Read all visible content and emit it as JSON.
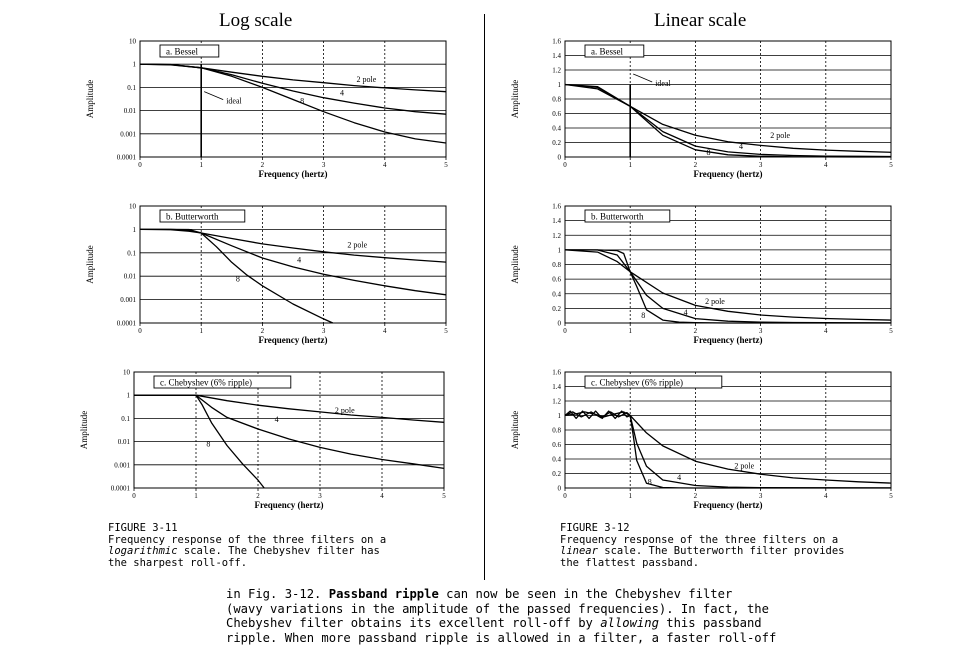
{
  "titles": {
    "left": "Log scale",
    "right": "Linear scale"
  },
  "chart_data": [
    {
      "id": "fig11a",
      "type": "line",
      "scale": "log",
      "title": "a. Bessel",
      "xlabel": "Frequency (hertz)",
      "ylabel": "Amplitude",
      "xlim": [
        0,
        5
      ],
      "ylim": [
        0.0001,
        10
      ],
      "xticks": [
        "0",
        "1",
        "2",
        "3",
        "4",
        "5"
      ],
      "yticks": [
        {
          "v": 10,
          "t": "10"
        },
        {
          "v": 1,
          "t": "1"
        },
        {
          "v": 0.1,
          "t": "0.1"
        },
        {
          "v": 0.01,
          "t": "0.01"
        },
        {
          "v": 0.001,
          "t": "0.001"
        },
        {
          "v": 0.0001,
          "t": "0.0001"
        }
      ],
      "grid": true,
      "ideal": {
        "x": 1,
        "label": "ideal"
      },
      "series": [
        {
          "name": "2 pole",
          "x": [
            0,
            0.5,
            1,
            1.5,
            2,
            2.5,
            3,
            3.5,
            4,
            4.5,
            5
          ],
          "y": [
            1,
            0.94,
            0.7,
            0.45,
            0.3,
            0.21,
            0.16,
            0.12,
            0.095,
            0.078,
            0.065
          ]
        },
        {
          "name": "4",
          "x": [
            0,
            0.5,
            1,
            1.5,
            2,
            2.5,
            3,
            3.5,
            4,
            4.5,
            5
          ],
          "y": [
            1,
            0.96,
            0.7,
            0.35,
            0.15,
            0.07,
            0.036,
            0.021,
            0.013,
            0.009,
            0.007
          ]
        },
        {
          "name": "8",
          "x": [
            0,
            0.5,
            1,
            1.5,
            2,
            2.5,
            3,
            3.5,
            4,
            4.5,
            5
          ],
          "y": [
            1,
            0.97,
            0.7,
            0.3,
            0.1,
            0.03,
            0.009,
            0.003,
            0.0012,
            0.0006,
            0.0004
          ]
        }
      ],
      "labels": [
        {
          "t": "2 pole",
          "x": 3.7,
          "y": 0.17
        },
        {
          "t": "4",
          "x": 3.3,
          "y": 0.045
        },
        {
          "t": "8",
          "x": 2.65,
          "y": 0.02
        }
      ]
    },
    {
      "id": "fig11b",
      "type": "line",
      "scale": "log",
      "title": "b. Butterworth",
      "xlabel": "Frequency (hertz)",
      "ylabel": "Amplitude",
      "xlim": [
        0,
        5
      ],
      "ylim": [
        0.0001,
        10
      ],
      "xticks": [
        "0",
        "1",
        "2",
        "3",
        "4",
        "5"
      ],
      "yticks": [
        {
          "v": 10,
          "t": "10"
        },
        {
          "v": 1,
          "t": "1"
        },
        {
          "v": 0.1,
          "t": "0.1"
        },
        {
          "v": 0.01,
          "t": "0.01"
        },
        {
          "v": 0.001,
          "t": "0.001"
        },
        {
          "v": 0.0001,
          "t": "0.0001"
        }
      ],
      "grid": true,
      "series": [
        {
          "name": "2 pole",
          "x": [
            0,
            0.5,
            0.8,
            1,
            1.5,
            2,
            2.5,
            3,
            3.5,
            4,
            4.5,
            5
          ],
          "y": [
            1,
            0.97,
            0.84,
            0.7,
            0.41,
            0.24,
            0.16,
            0.11,
            0.08,
            0.062,
            0.049,
            0.04
          ]
        },
        {
          "name": "4",
          "x": [
            0,
            0.5,
            0.8,
            1,
            1.5,
            2,
            2.5,
            3,
            3.5,
            4,
            4.5,
            5
          ],
          "y": [
            1,
            0.998,
            0.93,
            0.7,
            0.2,
            0.06,
            0.025,
            0.012,
            0.0066,
            0.0039,
            0.0024,
            0.0016
          ]
        },
        {
          "name": "8",
          "x": [
            0,
            0.5,
            0.8,
            1,
            1.25,
            1.5,
            1.75,
            2,
            2.5,
            3,
            3.15
          ],
          "y": [
            1,
            1,
            0.99,
            0.7,
            0.18,
            0.039,
            0.011,
            0.0039,
            0.00065,
            0.00015,
            0.0001
          ]
        }
      ],
      "labels": [
        {
          "t": "2 pole",
          "x": 3.55,
          "y": 0.17
        },
        {
          "t": "4",
          "x": 2.6,
          "y": 0.038
        },
        {
          "t": "8",
          "x": 1.6,
          "y": 0.006
        }
      ]
    },
    {
      "id": "fig11c",
      "type": "line",
      "scale": "log",
      "title": "c. Chebyshev (6% ripple)",
      "xlabel": "Frequency (hertz)",
      "ylabel": "Amplitude",
      "xlim": [
        0,
        5
      ],
      "ylim": [
        0.0001,
        10
      ],
      "xticks": [
        "0",
        "1",
        "2",
        "3",
        "4",
        "5"
      ],
      "yticks": [
        {
          "v": 10,
          "t": "10"
        },
        {
          "v": 1,
          "t": "1"
        },
        {
          "v": 0.1,
          "t": "0.1"
        },
        {
          "v": 0.01,
          "t": "0.01"
        },
        {
          "v": 0.001,
          "t": "0.001"
        },
        {
          "v": 0.0001,
          "t": "0.0001"
        }
      ],
      "grid": true,
      "series": [
        {
          "name": "2 pole",
          "x": [
            0,
            1,
            1.5,
            2,
            2.5,
            3,
            3.5,
            4,
            4.5,
            5
          ],
          "y": [
            1,
            1,
            0.58,
            0.37,
            0.26,
            0.19,
            0.14,
            0.11,
            0.085,
            0.068
          ]
        },
        {
          "name": "4",
          "x": [
            0,
            1,
            1.25,
            1.5,
            2,
            2.5,
            3,
            3.5,
            4,
            4.5,
            5
          ],
          "y": [
            1,
            1,
            0.3,
            0.11,
            0.035,
            0.013,
            0.0056,
            0.0029,
            0.0017,
            0.0011,
            0.0007
          ]
        },
        {
          "name": "8",
          "x": [
            0,
            1,
            1.1,
            1.25,
            1.5,
            1.75,
            2,
            2.1
          ],
          "y": [
            1,
            1,
            0.38,
            0.065,
            0.0068,
            0.0011,
            0.00022,
            0.0001
          ]
        }
      ],
      "labels": [
        {
          "t": "2 pole",
          "x": 3.4,
          "y": 0.17
        },
        {
          "t": "4",
          "x": 2.3,
          "y": 0.07
        },
        {
          "t": "8",
          "x": 1.2,
          "y": 0.006
        }
      ]
    },
    {
      "id": "fig12a",
      "type": "line",
      "scale": "linear",
      "title": "a. Bessel",
      "xlabel": "Frequency (hertz)",
      "ylabel": "Amplitude",
      "xlim": [
        0,
        5
      ],
      "ylim": [
        0,
        1.6
      ],
      "xticks": [
        "0",
        "1",
        "2",
        "3",
        "4",
        "5"
      ],
      "yticks": [
        {
          "v": 0,
          "t": "0"
        },
        {
          "v": 0.2,
          "t": "0.2"
        },
        {
          "v": 0.4,
          "t": "0.4"
        },
        {
          "v": 0.6,
          "t": "0.6"
        },
        {
          "v": 0.8,
          "t": "0.8"
        },
        {
          "v": 1,
          "t": "1"
        },
        {
          "v": 1.2,
          "t": "1.2"
        },
        {
          "v": 1.4,
          "t": "1.4"
        },
        {
          "v": 1.6,
          "t": "1.6"
        }
      ],
      "grid": true,
      "ideal": {
        "x": 1,
        "label": "ideal"
      },
      "series": [
        {
          "name": "2 pole",
          "x": [
            0,
            0.5,
            1,
            1.5,
            2,
            2.5,
            3,
            3.5,
            4,
            4.5,
            5
          ],
          "y": [
            1,
            0.94,
            0.7,
            0.45,
            0.3,
            0.21,
            0.16,
            0.12,
            0.095,
            0.078,
            0.065
          ]
        },
        {
          "name": "4",
          "x": [
            0,
            0.5,
            1,
            1.5,
            2,
            2.5,
            3,
            3.5,
            4,
            4.5,
            5
          ],
          "y": [
            1,
            0.96,
            0.7,
            0.35,
            0.15,
            0.07,
            0.036,
            0.021,
            0.013,
            0.009,
            0.007
          ]
        },
        {
          "name": "8",
          "x": [
            0,
            0.5,
            1,
            1.5,
            2,
            2.5,
            3,
            3.5,
            4,
            4.5,
            5
          ],
          "y": [
            1,
            0.97,
            0.7,
            0.3,
            0.1,
            0.03,
            0.009,
            0.003,
            0.0012,
            0.0006,
            0.0004
          ]
        }
      ],
      "labels": [
        {
          "t": "2 pole",
          "x": 3.3,
          "y": 0.26
        },
        {
          "t": "4",
          "x": 2.7,
          "y": 0.11
        },
        {
          "t": "8",
          "x": 2.2,
          "y": 0.03
        }
      ]
    },
    {
      "id": "fig12b",
      "type": "line",
      "scale": "linear",
      "title": "b. Butterworth",
      "xlabel": "Frequency (hertz)",
      "ylabel": "Amplitude",
      "xlim": [
        0,
        5
      ],
      "ylim": [
        0,
        1.6
      ],
      "xticks": [
        "0",
        "1",
        "2",
        "3",
        "4",
        "5"
      ],
      "yticks": [
        {
          "v": 0,
          "t": "0"
        },
        {
          "v": 0.2,
          "t": "0.2"
        },
        {
          "v": 0.4,
          "t": "0.4"
        },
        {
          "v": 0.6,
          "t": "0.6"
        },
        {
          "v": 0.8,
          "t": "0.8"
        },
        {
          "v": 1,
          "t": "1"
        },
        {
          "v": 1.2,
          "t": "1.2"
        },
        {
          "v": 1.4,
          "t": "1.4"
        },
        {
          "v": 1.6,
          "t": "1.6"
        }
      ],
      "grid": true,
      "series": [
        {
          "name": "2 pole",
          "x": [
            0,
            0.5,
            0.8,
            1,
            1.5,
            2,
            2.5,
            3,
            3.5,
            4,
            4.5,
            5
          ],
          "y": [
            1,
            0.97,
            0.84,
            0.7,
            0.41,
            0.24,
            0.16,
            0.11,
            0.08,
            0.062,
            0.049,
            0.04
          ]
        },
        {
          "name": "4",
          "x": [
            0,
            0.5,
            0.8,
            1,
            1.25,
            1.5,
            2,
            2.5,
            3,
            3.5,
            4,
            4.5,
            5
          ],
          "y": [
            1,
            0.998,
            0.93,
            0.7,
            0.38,
            0.2,
            0.06,
            0.025,
            0.012,
            0.0066,
            0.0039,
            0.0024,
            0.0016
          ]
        },
        {
          "name": "8",
          "x": [
            0,
            0.5,
            0.8,
            0.9,
            1,
            1.1,
            1.25,
            1.5,
            1.75,
            2,
            2.5,
            3,
            5
          ],
          "y": [
            1,
            1,
            0.99,
            0.95,
            0.7,
            0.5,
            0.18,
            0.039,
            0.011,
            0.0039,
            0.00065,
            0.00015,
            0
          ]
        }
      ],
      "labels": [
        {
          "t": "2 pole",
          "x": 2.3,
          "y": 0.26
        },
        {
          "t": "4",
          "x": 1.85,
          "y": 0.11
        },
        {
          "t": "8",
          "x": 1.2,
          "y": 0.07
        }
      ]
    },
    {
      "id": "fig12c",
      "type": "line",
      "scale": "linear",
      "title": "c. Chebyshev (6% ripple)",
      "xlabel": "Frequency (hertz)",
      "ylabel": "Amplitude",
      "xlim": [
        0,
        5
      ],
      "ylim": [
        0,
        1.6
      ],
      "xticks": [
        "0",
        "1",
        "2",
        "3",
        "4",
        "5"
      ],
      "yticks": [
        {
          "v": 0,
          "t": "0"
        },
        {
          "v": 0.2,
          "t": "0.2"
        },
        {
          "v": 0.4,
          "t": "0.4"
        },
        {
          "v": 0.6,
          "t": "0.6"
        },
        {
          "v": 0.8,
          "t": "0.8"
        },
        {
          "v": 1,
          "t": "1"
        },
        {
          "v": 1.2,
          "t": "1.2"
        },
        {
          "v": 1.4,
          "t": "1.4"
        },
        {
          "v": 1.6,
          "t": "1.6"
        }
      ],
      "grid": true,
      "series": [
        {
          "name": "2 pole",
          "x": [
            0,
            0.15,
            0.3,
            0.45,
            0.6,
            0.75,
            0.9,
            1,
            1.25,
            1.5,
            2,
            2.5,
            3,
            3.5,
            4,
            4.5,
            5
          ],
          "y": [
            1,
            1.02,
            1.05,
            1.02,
            0.98,
            1.02,
            1.05,
            1,
            0.76,
            0.58,
            0.37,
            0.26,
            0.19,
            0.14,
            0.11,
            0.085,
            0.068
          ]
        },
        {
          "name": "4",
          "x": [
            0,
            0.12,
            0.25,
            0.4,
            0.55,
            0.7,
            0.82,
            0.95,
            1,
            1.1,
            1.25,
            1.5,
            2,
            2.5,
            3,
            5
          ],
          "y": [
            1,
            1.05,
            0.98,
            1.05,
            0.97,
            1.05,
            0.98,
            1.04,
            1,
            0.62,
            0.3,
            0.11,
            0.035,
            0.013,
            0.0056,
            0.0007
          ]
        },
        {
          "name": "8",
          "x": [
            0,
            0.08,
            0.17,
            0.27,
            0.37,
            0.47,
            0.57,
            0.67,
            0.77,
            0.87,
            0.95,
            1,
            1.05,
            1.1,
            1.25,
            1.5,
            1.75,
            2,
            5
          ],
          "y": [
            1,
            1.06,
            0.96,
            1.06,
            0.96,
            1.06,
            0.96,
            1.06,
            0.96,
            1.06,
            0.98,
            1,
            0.7,
            0.38,
            0.065,
            0.0068,
            0.0011,
            0.0002,
            0
          ]
        }
      ],
      "labels": [
        {
          "t": "2 pole",
          "x": 2.75,
          "y": 0.27
        },
        {
          "t": "4",
          "x": 1.75,
          "y": 0.11
        },
        {
          "t": "8",
          "x": 1.3,
          "y": 0.05
        }
      ]
    }
  ],
  "captions": {
    "left": {
      "head": "FIGURE 3-11",
      "l1": "Frequency response of the three filters on a",
      "l2a": "logarithmic",
      "l2b": " scale. The Chebyshev filter has",
      "l3": "the sharpest roll-off."
    },
    "right": {
      "head": "FIGURE 3-12",
      "l1": "Frequency response of the three filters on a",
      "l2a": "linear",
      "l2b": " scale. The Butterworth filter provides",
      "l3": "the flattest passband."
    }
  },
  "body": {
    "l1a": "in Fig. 3-12. ",
    "l1b": "Passband ripple",
    "l1c": " can now be seen in the Chebyshev filter",
    "l2": "(wavy variations in the amplitude of the passed frequencies). In fact, the",
    "l3a": "Chebyshev filter obtains its excellent roll-off by ",
    "l3b": "allowing",
    "l3c": " this passband",
    "l4": "ripple. When more passband ripple is allowed in a filter, a faster roll-off"
  }
}
